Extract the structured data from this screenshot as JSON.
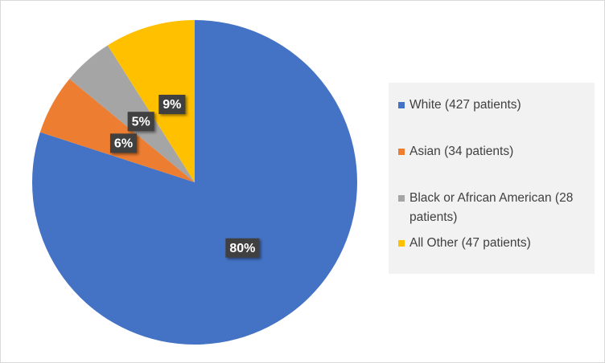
{
  "chart_data": {
    "type": "pie",
    "categories": [
      "White (427 patients)",
      "Asian (34 patients)",
      "Black or African American (28 patients)",
      "All Other (47 patients)"
    ],
    "values": [
      80,
      6,
      5,
      9
    ],
    "value_labels": [
      "80%",
      "6%",
      "5%",
      "9%"
    ],
    "colors": [
      "#4472c4",
      "#ed7d31",
      "#a5a5a5",
      "#ffc000"
    ],
    "legend": "right"
  }
}
